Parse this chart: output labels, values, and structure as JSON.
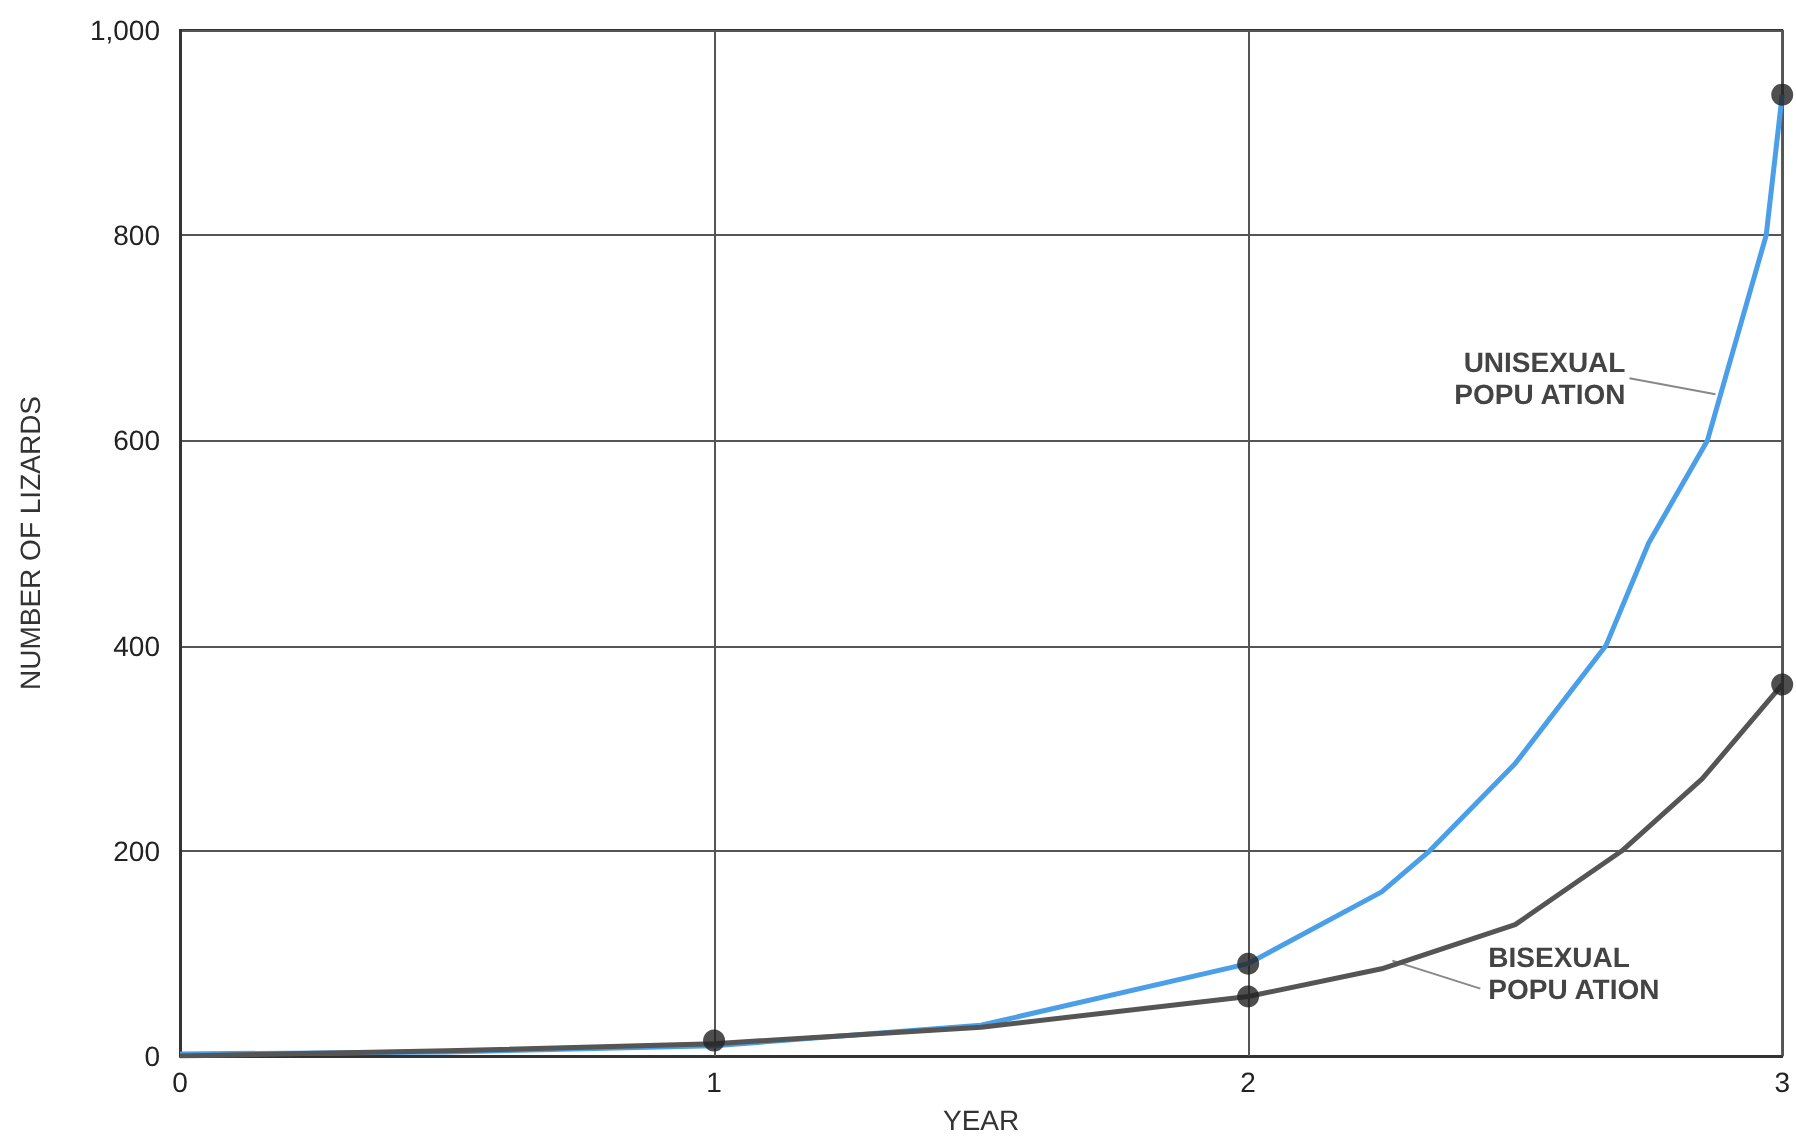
{
  "chart_data": {
    "type": "line",
    "xlabel": "YEAR",
    "ylabel": "NUMBER OF LIZARDS",
    "xlim": [
      0,
      3
    ],
    "xticks": [
      0,
      1,
      2,
      3
    ],
    "ylim": [
      0,
      1000
    ],
    "yticks": [
      0,
      200,
      400,
      600,
      800,
      {
        "value": 1000,
        "label": "1,000"
      }
    ],
    "grid": true,
    "line_style": "solid",
    "series": [
      {
        "color": "#4a9fe8",
        "x": [
          0,
          0.5,
          1,
          1.5,
          2,
          2.25,
          2.34,
          2.5,
          2.67,
          2.75,
          2.86,
          2.97,
          3
        ],
        "values": [
          2,
          4,
          10,
          30,
          90,
          160,
          200,
          285,
          400,
          500,
          600,
          800,
          937
        ]
      },
      {
        "color": "#555555",
        "x": [
          0,
          0.5,
          1,
          1.5,
          2,
          2.25,
          2.5,
          2.7,
          2.85,
          3
        ],
        "values": [
          0,
          5,
          12,
          28,
          58,
          85,
          128,
          200,
          270,
          362
        ]
      },
      {
        "type": "scatter",
        "marker": "circle",
        "color": "#222222",
        "x": [
          1,
          2,
          2,
          3,
          3
        ],
        "values": [
          15,
          90,
          58,
          937,
          362
        ]
      }
    ],
    "annotations": [
      {
        "text": "UNISEXUAL\nPOPU ATION",
        "x": 2.875,
        "y": 645
      },
      {
        "text": "BISEXUAL\nPOPU ATION",
        "x": 2.27,
        "y": 93
      }
    ]
  }
}
